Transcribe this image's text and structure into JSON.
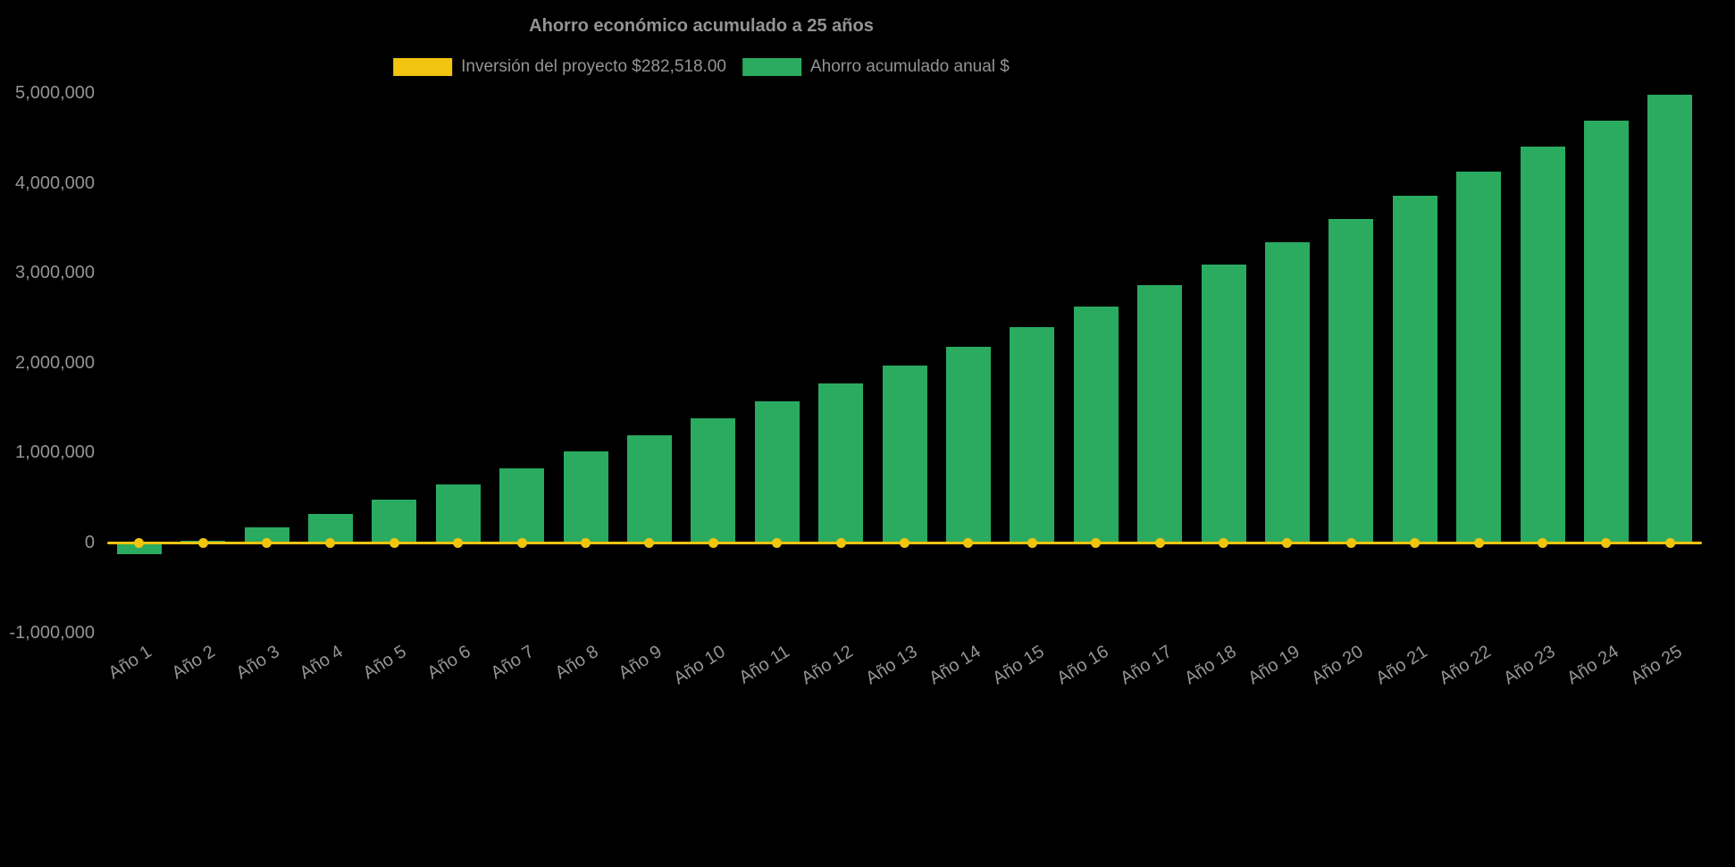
{
  "chart_data": {
    "type": "bar",
    "title": "Ahorro económico acumulado a 25 años",
    "background": "#000000",
    "text_color": "#949494",
    "legend_position": "top",
    "grid": false,
    "ylim": [
      -1000000,
      5000000
    ],
    "ytick_interval": 1000000,
    "ytick_labels": [
      "-1,000,000",
      "0",
      "1,000,000",
      "2,000,000",
      "3,000,000",
      "4,000,000",
      "5,000,000"
    ],
    "categories": [
      "Año 1",
      "Año 2",
      "Año 3",
      "Año 4",
      "Año 5",
      "Año 6",
      "Año 7",
      "Año 8",
      "Año 9",
      "Año 10",
      "Año 11",
      "Año 12",
      "Año 13",
      "Año 14",
      "Año 15",
      "Año 16",
      "Año 17",
      "Año 18",
      "Año 19",
      "Año 20",
      "Año 21",
      "Año 22",
      "Año 23",
      "Año 24",
      "Año 25"
    ],
    "series": [
      {
        "name": "Inversión del proyecto $282,518.00",
        "type": "line",
        "color": "#f1c40f",
        "investment_amount_label": "$282,518.00",
        "values": [
          0,
          0,
          0,
          0,
          0,
          0,
          0,
          0,
          0,
          0,
          0,
          0,
          0,
          0,
          0,
          0,
          0,
          0,
          0,
          0,
          0,
          0,
          0,
          0,
          0
        ]
      },
      {
        "name": "Ahorro acumulado anual $",
        "type": "bar",
        "color": "#2aab60",
        "values": [
          -130000,
          20000,
          170000,
          320000,
          480000,
          650000,
          830000,
          1010000,
          1190000,
          1380000,
          1570000,
          1770000,
          1970000,
          2180000,
          2400000,
          2620000,
          2860000,
          3090000,
          3340000,
          3600000,
          3860000,
          4130000,
          4400000,
          4690000,
          4980000
        ]
      }
    ]
  }
}
